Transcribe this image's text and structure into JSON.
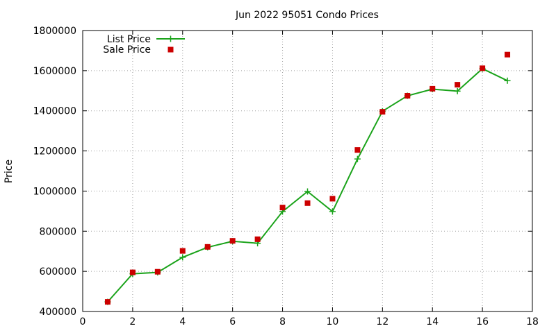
{
  "chart_data": {
    "type": "line",
    "title": "Jun 2022 95051 Condo Prices",
    "xlabel": "",
    "ylabel": "Price",
    "xlim": [
      0,
      18
    ],
    "ylim": [
      400000,
      1800000
    ],
    "xticks": [
      0,
      2,
      4,
      6,
      8,
      10,
      12,
      14,
      16,
      18
    ],
    "yticks": [
      400000,
      600000,
      800000,
      1000000,
      1200000,
      1400000,
      1600000,
      1800000
    ],
    "grid": true,
    "legend_position": "top-left",
    "series": [
      {
        "name": "List Price",
        "style": "line-with-plus-markers",
        "color": "#1aa31a",
        "x": [
          1,
          2,
          3,
          4,
          5,
          6,
          7,
          8,
          9,
          10,
          11,
          12,
          13,
          14,
          15,
          16,
          17
        ],
        "y": [
          448000,
          588000,
          595000,
          670000,
          720000,
          750000,
          740000,
          898000,
          998000,
          898000,
          1160000,
          1398000,
          1475000,
          1508000,
          1498000,
          1610000,
          1550000
        ]
      },
      {
        "name": "Sale Price",
        "style": "square-markers",
        "color": "#cc0000",
        "x": [
          1,
          2,
          3,
          4,
          5,
          6,
          7,
          8,
          9,
          10,
          11,
          12,
          13,
          14,
          15,
          16,
          17
        ],
        "y": [
          448000,
          595000,
          598000,
          702000,
          722000,
          752000,
          760000,
          918000,
          940000,
          962000,
          1205000,
          1395000,
          1475000,
          1510000,
          1530000,
          1612000,
          1680000
        ]
      }
    ]
  }
}
